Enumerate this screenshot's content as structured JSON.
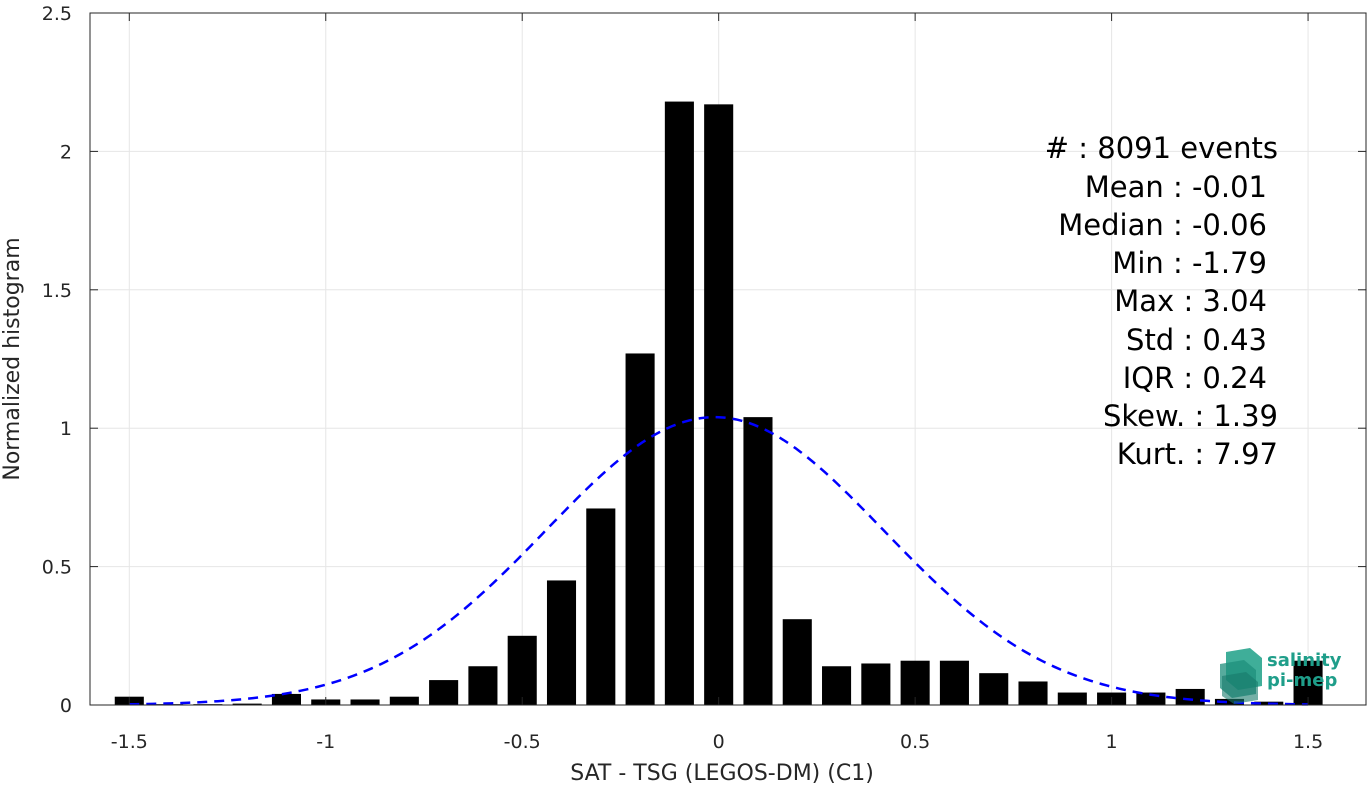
{
  "chart_data": {
    "type": "bar",
    "xlabel": "SAT - TSG (LEGOS-DM) (C1)",
    "ylabel": "Normalized histogram",
    "xlim": [
      -1.6,
      1.65
    ],
    "ylim": [
      0,
      2.5
    ],
    "grid": true,
    "x_ticks": [
      -1.5,
      -1,
      -0.5,
      0,
      0.5,
      1,
      1.5
    ],
    "x_tick_labels": [
      "-1.5",
      "-1",
      "-0.5",
      "0",
      "0.5",
      "1",
      "1.5"
    ],
    "y_ticks": [
      0,
      0.5,
      1,
      1.5,
      2,
      2.5
    ],
    "y_tick_labels": [
      "0",
      "0.5",
      "1",
      "1.5",
      "2",
      "2.5"
    ],
    "bin_width": 0.1,
    "bar_color": "#000000",
    "x": [
      -1.5,
      -1.4,
      -1.3,
      -1.2,
      -1.1,
      -1.0,
      -0.9,
      -0.8,
      -0.7,
      -0.6,
      -0.5,
      -0.4,
      -0.3,
      -0.2,
      -0.1,
      0.0,
      0.1,
      0.2,
      0.3,
      0.4,
      0.5,
      0.6,
      0.7,
      0.8,
      0.9,
      1.0,
      1.1,
      1.2,
      1.3,
      1.4,
      1.5
    ],
    "values": [
      0.03,
      0.003,
      0.003,
      0.005,
      0.04,
      0.02,
      0.02,
      0.03,
      0.09,
      0.14,
      0.25,
      0.45,
      0.71,
      1.27,
      2.18,
      2.17,
      1.04,
      0.31,
      0.14,
      0.15,
      0.16,
      0.16,
      0.115,
      0.085,
      0.045,
      0.045,
      0.045,
      0.058,
      0.022,
      0.012,
      0.16
    ],
    "fit": {
      "type": "gaussian",
      "mean": -0.01,
      "std": 0.43,
      "amplitude": 1.04,
      "color": "#0000ff",
      "style": "dashed",
      "x_range": [
        -1.5,
        1.5
      ]
    },
    "annotations": [
      "#  : 8091 events",
      "Mean : -0.01",
      "Median : -0.06",
      "Min : -1.79",
      "Max : 3.04",
      "Std : 0.43",
      "IQR : 0.24",
      "Skew. : 1.39",
      "Kurt. : 7.97"
    ]
  },
  "logo": {
    "line1": "salinity",
    "line2": "pi-mep",
    "color": "#1f9e8a"
  }
}
